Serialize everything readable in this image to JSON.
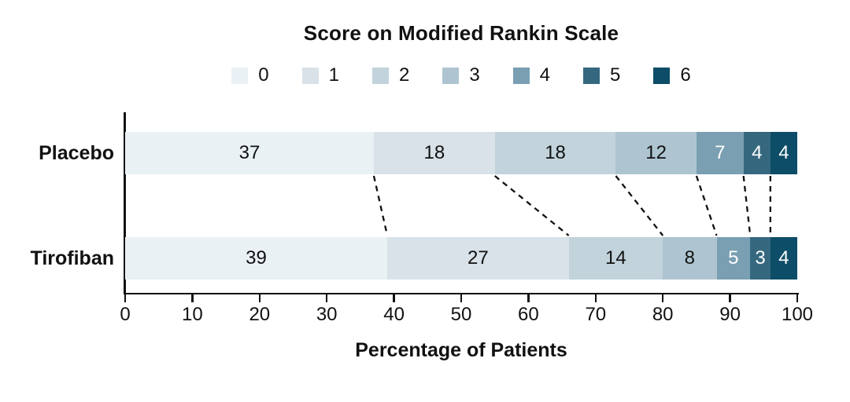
{
  "chart_data": {
    "type": "bar",
    "orientation": "horizontal",
    "stacked": true,
    "title": "Score on Modified Rankin Scale",
    "xlabel": "Percentage of Patients",
    "xlim": [
      0,
      100
    ],
    "xticks": [
      0,
      10,
      20,
      30,
      40,
      50,
      60,
      70,
      80,
      90,
      100
    ],
    "grid": false,
    "legend": {
      "position": "top",
      "entries": [
        {
          "label": "0",
          "color": "#eaf1f5"
        },
        {
          "label": "1",
          "color": "#d8e2e8"
        },
        {
          "label": "2",
          "color": "#c2d3dc"
        },
        {
          "label": "3",
          "color": "#aec5d1"
        },
        {
          "label": "4",
          "color": "#7a9fb2"
        },
        {
          "label": "5",
          "color": "#35687f"
        },
        {
          "label": "6",
          "color": "#0d4d67"
        }
      ]
    },
    "categories": [
      "Placebo",
      "Tirofiban"
    ],
    "series": [
      {
        "name": "Placebo",
        "values": [
          37,
          18,
          18,
          12,
          7,
          4,
          4
        ]
      },
      {
        "name": "Tirofiban",
        "values": [
          39,
          27,
          14,
          8,
          5,
          3,
          4
        ]
      }
    ],
    "segment_label_colors": [
      "#111111",
      "#111111",
      "#111111",
      "#111111",
      "#ffffff",
      "#ffffff",
      "#ffffff"
    ],
    "connectors": {
      "style": "dashed",
      "color": "#111111",
      "between": "cumulative segment boundaries of the two bars"
    }
  }
}
